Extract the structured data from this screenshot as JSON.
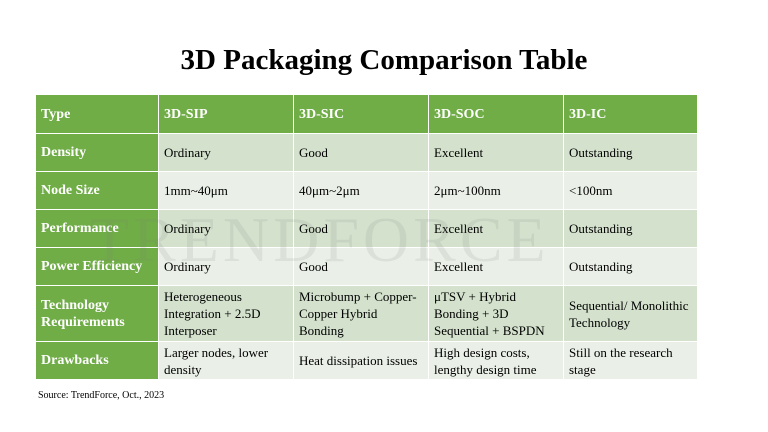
{
  "header": {
    "title": "3D Packaging Comparison Table"
  },
  "watermark": "TRENDFORCE",
  "table": {
    "columns": [
      "Type",
      "3D-SIP",
      "3D-SIC",
      "3D-SOC",
      "3D-IC"
    ],
    "rows": [
      [
        "Density",
        "Ordinary",
        "Good",
        "Excellent",
        "Outstanding"
      ],
      [
        "Node Size",
        "1mm~40μm",
        "40μm~2μm",
        "2μm~100nm",
        "<100nm"
      ],
      [
        "Performance",
        "Ordinary",
        "Good",
        "Excellent",
        "Outstanding"
      ],
      [
        "Power Efficiency",
        "Ordinary",
        "Good",
        "Excellent",
        "Outstanding"
      ],
      [
        "Technology Requirements",
        "Heterogeneous Integration + 2.5D Interposer",
        "Microbump + Copper-Copper Hybrid Bonding",
        "μTSV + Hybrid Bonding + 3D Sequential + BSPDN",
        "Sequential/ Monolithic Technology"
      ],
      [
        "Drawbacks",
        "Larger nodes, lower density",
        "Heat dissipation issues",
        "High design costs, lengthy design time",
        "Still on the research stage"
      ]
    ]
  },
  "source": "Source: TrendForce, Oct., 2023"
}
